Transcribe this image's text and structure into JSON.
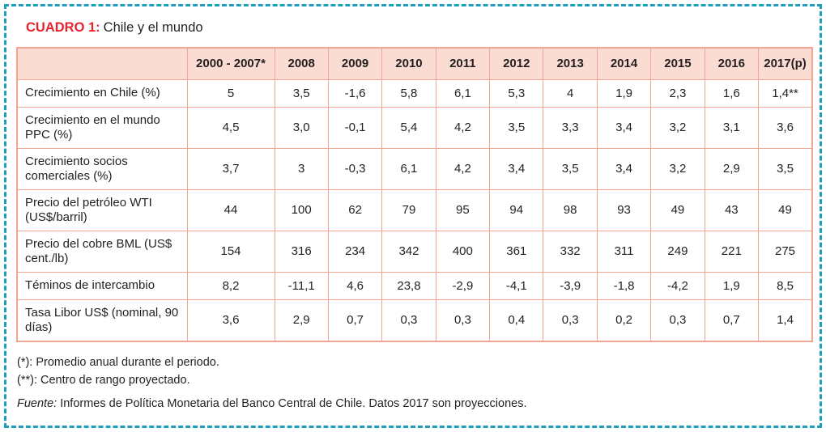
{
  "title": {
    "label": "CUADRO 1:",
    "text": "Chile y el mundo"
  },
  "colors": {
    "frame_border": "#1b9fbd",
    "title_accent": "#e8232b",
    "table_border": "#f2a592",
    "header_background": "#fbdcd2",
    "text": "#231f20"
  },
  "chart_data": {
    "type": "table",
    "title": "CUADRO 1: Chile y el mundo",
    "columns": [
      "",
      "2000 - 2007*",
      "2008",
      "2009",
      "2010",
      "2011",
      "2012",
      "2013",
      "2014",
      "2015",
      "2016",
      "2017(p)"
    ],
    "rows": [
      {
        "label": "Crecimiento en Chile (%)",
        "values": [
          "5",
          "3,5",
          "-1,6",
          "5,8",
          "6,1",
          "5,3",
          "4",
          "1,9",
          "2,3",
          "1,6",
          "1,4**"
        ]
      },
      {
        "label": "Crecimiento en el mundo PPC (%)",
        "values": [
          "4,5",
          "3,0",
          "-0,1",
          "5,4",
          "4,2",
          "3,5",
          "3,3",
          "3,4",
          "3,2",
          "3,1",
          "3,6"
        ]
      },
      {
        "label": "Crecimiento socios comerciales (%)",
        "values": [
          "3,7",
          "3",
          "-0,3",
          "6,1",
          "4,2",
          "3,4",
          "3,5",
          "3,4",
          "3,2",
          "2,9",
          "3,5"
        ]
      },
      {
        "label": "Precio del petróleo WTI (US$/barril)",
        "values": [
          "44",
          "100",
          "62",
          "79",
          "95",
          "94",
          "98",
          "93",
          "49",
          "43",
          "49"
        ]
      },
      {
        "label": "Precio del cobre BML (US$ cent./lb)",
        "values": [
          "154",
          "316",
          "234",
          "342",
          "400",
          "361",
          "332",
          "311",
          "249",
          "221",
          "275"
        ]
      },
      {
        "label": "Téminos de intercambio",
        "values": [
          "8,2",
          "-11,1",
          "4,6",
          "23,8",
          "-2,9",
          "-4,1",
          "-3,9",
          "-1,8",
          "-4,2",
          "1,9",
          "8,5"
        ]
      },
      {
        "label": "Tasa Libor US$ (nominal, 90 días)",
        "values": [
          "3,6",
          "2,9",
          "0,7",
          "0,3",
          "0,3",
          "0,4",
          "0,3",
          "0,2",
          "0,3",
          "0,7",
          "1,4"
        ]
      }
    ]
  },
  "footnotes": {
    "note1": "(*): Promedio anual durante el periodo.",
    "note2": "(**): Centro de rango proyectado.",
    "source_label": "Fuente:",
    "source_text": "Informes de Política Monetaria del Banco Central de Chile. Datos 2017 son proyecciones."
  }
}
